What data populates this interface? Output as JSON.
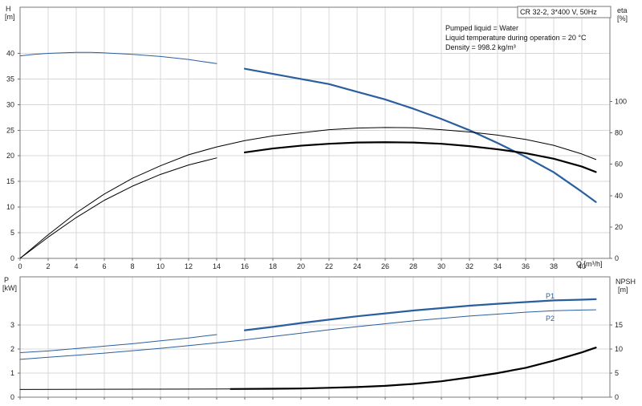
{
  "chart_data": [
    {
      "type": "line",
      "panel": "upper",
      "xlabel": "Q [m³/h]",
      "ylabel_left": [
        "H",
        "[m]"
      ],
      "ylabel_right": [
        "eta",
        "[%]"
      ],
      "x_ticks": [
        "0",
        "2",
        "4",
        "6",
        "8",
        "10",
        "12",
        "14",
        "16",
        "18",
        "20",
        "22",
        "24",
        "26",
        "28",
        "30",
        "32",
        "34",
        "36",
        "38",
        "40"
      ],
      "y_ticks_left": [
        "0",
        "5",
        "10",
        "15",
        "20",
        "25",
        "30",
        "35",
        "40"
      ],
      "y_ticks_right": [
        "0",
        "20",
        "40",
        "60",
        "80",
        "100"
      ],
      "xlim": [
        0,
        42
      ],
      "ylim_left": [
        0,
        49
      ],
      "ylim_right": [
        0,
        160
      ],
      "grid": true,
      "header_box": "CR 32-2, 3*400 V, 50Hz",
      "annotations": [
        "Pumped liquid = Water",
        "Liquid temperature during operation = 20 °C",
        "Density = 998.2 kg/m³"
      ],
      "series": [
        {
          "axis": "left",
          "color": "#2a5f9e",
          "highlight_from": 15,
          "points": [
            [
              0,
              39.5
            ],
            [
              1,
              39.8
            ],
            [
              2,
              40
            ],
            [
              3,
              40.1
            ],
            [
              4,
              40.2
            ],
            [
              5,
              40.2
            ],
            [
              6,
              40.1
            ],
            [
              8,
              39.8
            ],
            [
              10,
              39.4
            ],
            [
              12,
              38.8
            ],
            [
              14,
              38
            ],
            [
              16,
              37
            ],
            [
              18,
              36
            ],
            [
              20,
              35
            ],
            [
              22,
              34
            ],
            [
              24,
              32.5
            ],
            [
              26,
              31
            ],
            [
              28,
              29.2
            ],
            [
              30,
              27.2
            ],
            [
              32,
              25
            ],
            [
              34,
              22.5
            ],
            [
              36,
              19.8
            ],
            [
              38,
              16.8
            ],
            [
              40,
              13
            ],
            [
              41,
              11
            ]
          ]
        },
        {
          "axis": "right",
          "color": "#000000",
          "highlight_from": 999,
          "points": [
            [
              0,
              0
            ],
            [
              2,
              15
            ],
            [
              4,
              29
            ],
            [
              6,
              41
            ],
            [
              8,
              51
            ],
            [
              10,
              59
            ],
            [
              12,
              66
            ],
            [
              14,
              71
            ],
            [
              16,
              75
            ],
            [
              18,
              78
            ],
            [
              20,
              80
            ],
            [
              22,
              82
            ],
            [
              24,
              83
            ],
            [
              26,
              83.4
            ],
            [
              28,
              83.2
            ],
            [
              30,
              82
            ],
            [
              32,
              80.5
            ],
            [
              34,
              78.5
            ],
            [
              36,
              75.8
            ],
            [
              38,
              72
            ],
            [
              40,
              66.5
            ],
            [
              41,
              63
            ]
          ]
        },
        {
          "axis": "right",
          "color": "#000000",
          "highlight_from": 15,
          "points": [
            [
              0,
              0
            ],
            [
              2,
              13.5
            ],
            [
              4,
              26
            ],
            [
              6,
              37
            ],
            [
              8,
              46
            ],
            [
              10,
              53.5
            ],
            [
              12,
              59.5
            ],
            [
              14,
              64
            ],
            [
              16,
              67.5
            ],
            [
              18,
              70
            ],
            [
              20,
              71.8
            ],
            [
              22,
              73
            ],
            [
              24,
              73.8
            ],
            [
              26,
              74
            ],
            [
              28,
              73.8
            ],
            [
              30,
              73
            ],
            [
              32,
              71.5
            ],
            [
              34,
              69.5
            ],
            [
              36,
              67
            ],
            [
              38,
              63.5
            ],
            [
              40,
              58.5
            ],
            [
              41,
              55
            ]
          ]
        }
      ]
    },
    {
      "type": "line",
      "panel": "lower",
      "ylabel_left": [
        "P",
        "[kW]"
      ],
      "ylabel_right": [
        "NPSH",
        "[m]"
      ],
      "x_ticks": [
        "0",
        "2",
        "4",
        "6",
        "8",
        "10",
        "12",
        "14",
        "16",
        "18",
        "20",
        "22",
        "24",
        "26",
        "28",
        "30",
        "32",
        "34",
        "36",
        "38",
        "40"
      ],
      "y_ticks_left": [
        "0",
        "1",
        "2",
        "3"
      ],
      "y_ticks_right": [
        "0",
        "5",
        "10",
        "15"
      ],
      "xlim": [
        0,
        42
      ],
      "ylim_left": [
        0,
        5
      ],
      "ylim_right": [
        0,
        25
      ],
      "grid": true,
      "series": [
        {
          "name": "P1",
          "axis": "left",
          "color": "#2a5f9e",
          "highlight_from": 15,
          "points": [
            [
              0,
              1.85
            ],
            [
              2,
              1.92
            ],
            [
              4,
              2.02
            ],
            [
              6,
              2.12
            ],
            [
              8,
              2.22
            ],
            [
              10,
              2.34
            ],
            [
              12,
              2.46
            ],
            [
              14,
              2.6
            ],
            [
              16,
              2.78
            ],
            [
              18,
              2.92
            ],
            [
              20,
              3.08
            ],
            [
              22,
              3.22
            ],
            [
              24,
              3.36
            ],
            [
              26,
              3.48
            ],
            [
              28,
              3.6
            ],
            [
              30,
              3.7
            ],
            [
              32,
              3.8
            ],
            [
              34,
              3.88
            ],
            [
              36,
              3.95
            ],
            [
              38,
              4.02
            ],
            [
              40,
              4.05
            ],
            [
              41,
              4.07
            ]
          ]
        },
        {
          "name": "P2",
          "axis": "left",
          "color": "#2a5f9e",
          "highlight_from": 999,
          "points": [
            [
              0,
              1.57
            ],
            [
              2,
              1.66
            ],
            [
              4,
              1.74
            ],
            [
              6,
              1.83
            ],
            [
              8,
              1.93
            ],
            [
              10,
              2.03
            ],
            [
              12,
              2.14
            ],
            [
              14,
              2.26
            ],
            [
              16,
              2.38
            ],
            [
              18,
              2.52
            ],
            [
              20,
              2.66
            ],
            [
              22,
              2.8
            ],
            [
              24,
              2.93
            ],
            [
              26,
              3.05
            ],
            [
              28,
              3.17
            ],
            [
              30,
              3.27
            ],
            [
              32,
              3.37
            ],
            [
              34,
              3.45
            ],
            [
              36,
              3.53
            ],
            [
              38,
              3.59
            ],
            [
              40,
              3.62
            ],
            [
              41,
              3.63
            ]
          ]
        },
        {
          "axis": "right",
          "color": "#000000",
          "highlight_from": 15,
          "points": [
            [
              0,
              1.6
            ],
            [
              15,
              1.7
            ],
            [
              18,
              1.75
            ],
            [
              20,
              1.8
            ],
            [
              22,
              1.95
            ],
            [
              24,
              2.1
            ],
            [
              26,
              2.35
            ],
            [
              28,
              2.75
            ],
            [
              30,
              3.3
            ],
            [
              32,
              4.1
            ],
            [
              34,
              5.0
            ],
            [
              36,
              6.1
            ],
            [
              38,
              7.6
            ],
            [
              40,
              9.3
            ],
            [
              41,
              10.3
            ]
          ]
        }
      ]
    }
  ]
}
